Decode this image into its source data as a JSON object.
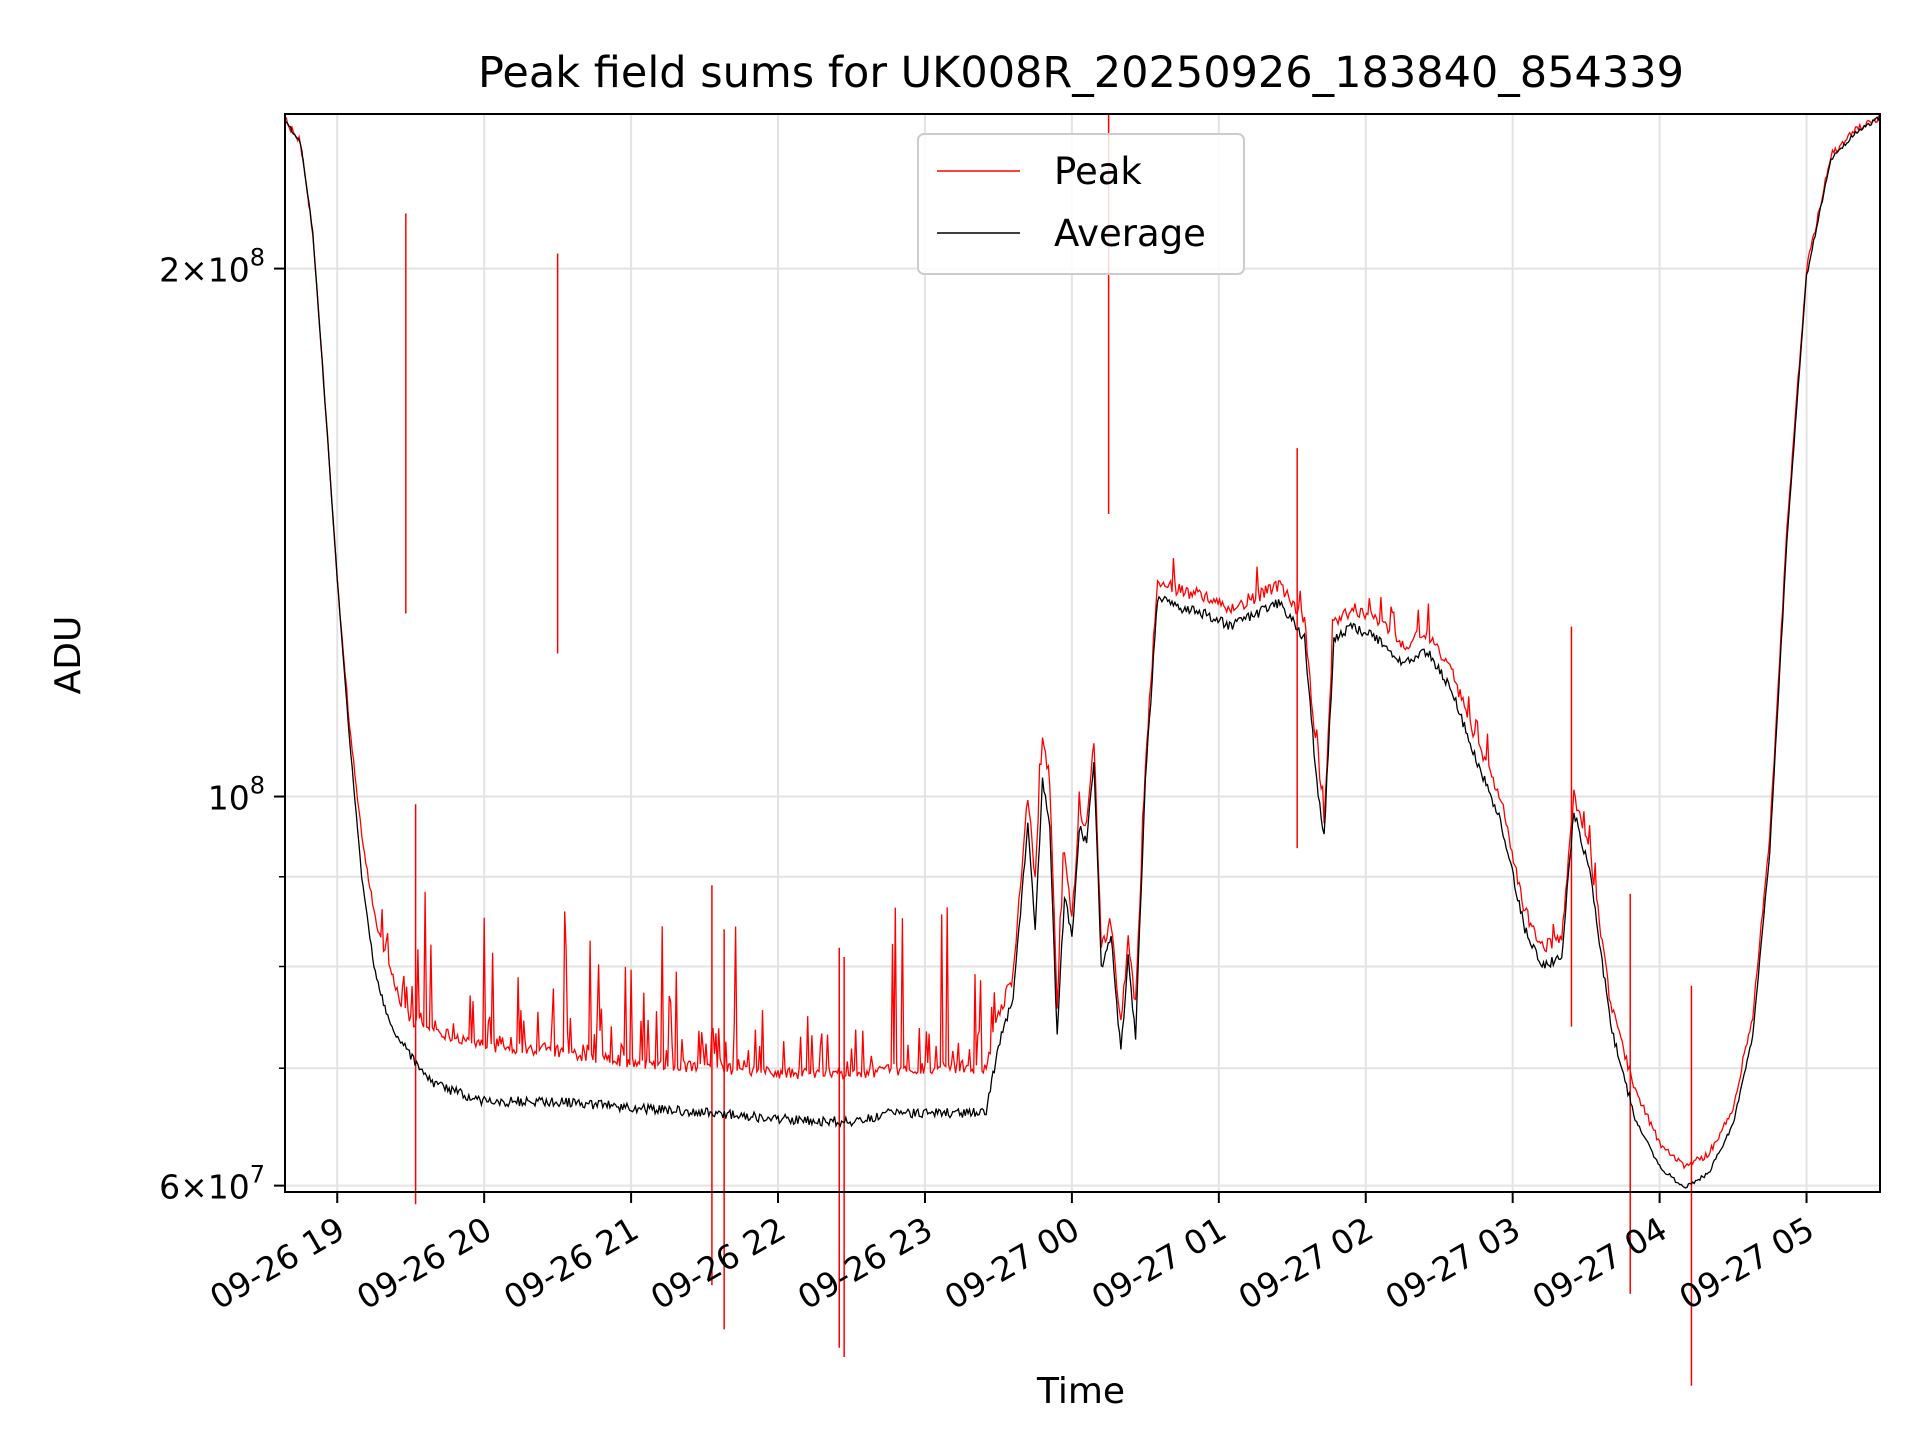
{
  "chart_data": {
    "type": "line",
    "title": "Peak field sums for UK008R_20250926_183840_854339",
    "xlabel": "Time",
    "ylabel": "ADU",
    "x_scale": "time",
    "y_scale": "log",
    "xlim": [
      "2025-09-26T18:38:40",
      "2025-09-27T05:30:00"
    ],
    "ylim": [
      59500000,
      245000000
    ],
    "grid": true,
    "legend_position": "top-center",
    "x_ticks": [
      {
        "t": "2025-09-26T19:00:00",
        "label": "09-26 19"
      },
      {
        "t": "2025-09-26T20:00:00",
        "label": "09-26 20"
      },
      {
        "t": "2025-09-26T21:00:00",
        "label": "09-26 21"
      },
      {
        "t": "2025-09-26T22:00:00",
        "label": "09-26 22"
      },
      {
        "t": "2025-09-26T23:00:00",
        "label": "09-26 23"
      },
      {
        "t": "2025-09-27T00:00:00",
        "label": "09-27 00"
      },
      {
        "t": "2025-09-27T01:00:00",
        "label": "09-27 01"
      },
      {
        "t": "2025-09-27T02:00:00",
        "label": "09-27 02"
      },
      {
        "t": "2025-09-27T03:00:00",
        "label": "09-27 03"
      },
      {
        "t": "2025-09-27T04:00:00",
        "label": "09-27 04"
      },
      {
        "t": "2025-09-27T05:00:00",
        "label": "09-27 05"
      }
    ],
    "y_ticks_major": [
      {
        "value": 60000000,
        "mant": "6",
        "base": "10",
        "exp": "7"
      },
      {
        "value": 100000000,
        "mant": "",
        "base": "10",
        "exp": "8"
      },
      {
        "value": 200000000,
        "mant": "2",
        "base": "10",
        "exp": "8"
      }
    ],
    "y_ticks_minor": [
      70000000,
      80000000,
      90000000
    ],
    "series": [
      {
        "name": "Peak",
        "color": "#ff0000",
        "points": [
          [
            "2025-09-26T18:38:40",
            243000000
          ],
          [
            "2025-09-26T18:45:00",
            236000000
          ],
          [
            "2025-09-26T18:50:00",
            210000000
          ],
          [
            "2025-09-26T18:55:00",
            168000000
          ],
          [
            "2025-09-26T19:00:00",
            133000000
          ],
          [
            "2025-09-26T19:05:00",
            110000000
          ],
          [
            "2025-09-26T19:10:00",
            95000000
          ],
          [
            "2025-09-26T19:15:00",
            86000000
          ],
          [
            "2025-09-26T19:20:00",
            80000000
          ],
          [
            "2025-09-26T19:25:00",
            76000000
          ],
          [
            "2025-09-26T19:30:00",
            74000000
          ],
          [
            "2025-09-26T19:40:00",
            73000000
          ],
          [
            "2025-09-26T20:00:00",
            71500000
          ],
          [
            "2025-09-26T20:30:00",
            71000000
          ],
          [
            "2025-09-26T21:00:00",
            70000000
          ],
          [
            "2025-09-26T21:30:00",
            69500000
          ],
          [
            "2025-09-26T22:00:00",
            69000000
          ],
          [
            "2025-09-26T22:30:00",
            69000000
          ],
          [
            "2025-09-26T23:00:00",
            69500000
          ],
          [
            "2025-09-26T23:25:00",
            69500000
          ],
          [
            "2025-09-26T23:30:00",
            75000000
          ],
          [
            "2025-09-26T23:36:00",
            79000000
          ],
          [
            "2025-09-26T23:42:00",
            100000000
          ],
          [
            "2025-09-26T23:45:00",
            90000000
          ],
          [
            "2025-09-26T23:48:00",
            108000000
          ],
          [
            "2025-09-26T23:51:00",
            102000000
          ],
          [
            "2025-09-26T23:54:00",
            76000000
          ],
          [
            "2025-09-26T23:57:00",
            93000000
          ],
          [
            "2025-09-27T00:00:00",
            85000000
          ],
          [
            "2025-09-27T00:03:00",
            98000000
          ],
          [
            "2025-09-27T00:06:00",
            96000000
          ],
          [
            "2025-09-27T00:09:00",
            108000000
          ],
          [
            "2025-09-27T00:12:00",
            82000000
          ],
          [
            "2025-09-27T00:16:00",
            85000000
          ],
          [
            "2025-09-27T00:20:00",
            74000000
          ],
          [
            "2025-09-27T00:23:00",
            83000000
          ],
          [
            "2025-09-27T00:26:00",
            76000000
          ],
          [
            "2025-09-27T00:30:00",
            104000000
          ],
          [
            "2025-09-27T00:35:00",
            133000000
          ],
          [
            "2025-09-27T00:45:00",
            131000000
          ],
          [
            "2025-09-27T00:55:00",
            130000000
          ],
          [
            "2025-09-27T01:05:00",
            128000000
          ],
          [
            "2025-09-27T01:15:00",
            130000000
          ],
          [
            "2025-09-27T01:25:00",
            132000000
          ],
          [
            "2025-09-27T01:35:00",
            126000000
          ],
          [
            "2025-09-27T01:40:00",
            105000000
          ],
          [
            "2025-09-27T01:43:00",
            97000000
          ],
          [
            "2025-09-27T01:47:00",
            126000000
          ],
          [
            "2025-09-27T01:55:00",
            128000000
          ],
          [
            "2025-09-27T02:05:00",
            126000000
          ],
          [
            "2025-09-27T02:15:00",
            122000000
          ],
          [
            "2025-09-27T02:25:00",
            124000000
          ],
          [
            "2025-09-27T02:35:00",
            118000000
          ],
          [
            "2025-09-27T02:45:00",
            108000000
          ],
          [
            "2025-09-27T02:55:00",
            100000000
          ],
          [
            "2025-09-27T03:05:00",
            86000000
          ],
          [
            "2025-09-27T03:12:00",
            82000000
          ],
          [
            "2025-09-27T03:20:00",
            83000000
          ],
          [
            "2025-09-27T03:25:00",
            100000000
          ],
          [
            "2025-09-27T03:32:00",
            92000000
          ],
          [
            "2025-09-27T03:40:00",
            76000000
          ],
          [
            "2025-09-27T03:50:00",
            68000000
          ],
          [
            "2025-09-27T04:00:00",
            63500000
          ],
          [
            "2025-09-27T04:10:00",
            61500000
          ],
          [
            "2025-09-27T04:20:00",
            62500000
          ],
          [
            "2025-09-27T04:30:00",
            66500000
          ],
          [
            "2025-09-27T04:38:00",
            75000000
          ],
          [
            "2025-09-27T04:45:00",
            95000000
          ],
          [
            "2025-09-27T04:52:00",
            142000000
          ],
          [
            "2025-09-27T05:00:00",
            200000000
          ],
          [
            "2025-09-27T05:10:00",
            232000000
          ],
          [
            "2025-09-27T05:20:00",
            240000000
          ],
          [
            "2025-09-27T05:30:00",
            244000000
          ]
        ],
        "spikes": [
          [
            "2025-09-26T19:28:00",
            215000000
          ],
          [
            "2025-09-26T19:32:00",
            99000000
          ],
          [
            "2025-09-26T20:30:00",
            204000000
          ],
          [
            "2025-09-26T21:33:00",
            89000000
          ],
          [
            "2025-09-26T21:38:00",
            84000000
          ],
          [
            "2025-09-26T22:25:00",
            82000000
          ],
          [
            "2025-09-26T22:27:00",
            81000000
          ],
          [
            "2025-09-27T00:15:00",
            245000000
          ],
          [
            "2025-09-27T01:32:00",
            158000000
          ],
          [
            "2025-09-27T03:24:00",
            125000000
          ],
          [
            "2025-09-27T04:13:00",
            78000000
          ],
          [
            "2025-09-27T03:48:00",
            88000000
          ]
        ]
      },
      {
        "name": "Average",
        "color": "#000000",
        "points": [
          [
            "2025-09-26T18:38:40",
            243000000
          ],
          [
            "2025-09-26T18:45:00",
            236000000
          ],
          [
            "2025-09-26T18:50:00",
            210000000
          ],
          [
            "2025-09-26T18:55:00",
            168000000
          ],
          [
            "2025-09-26T19:00:00",
            133000000
          ],
          [
            "2025-09-26T19:05:00",
            108000000
          ],
          [
            "2025-09-26T19:10:00",
            90000000
          ],
          [
            "2025-09-26T19:15:00",
            80000000
          ],
          [
            "2025-09-26T19:20:00",
            75000000
          ],
          [
            "2025-09-26T19:30:00",
            71000000
          ],
          [
            "2025-09-26T19:40:00",
            68500000
          ],
          [
            "2025-09-26T20:00:00",
            67000000
          ],
          [
            "2025-09-26T20:30:00",
            67000000
          ],
          [
            "2025-09-26T21:00:00",
            66500000
          ],
          [
            "2025-09-26T21:30:00",
            66000000
          ],
          [
            "2025-09-26T22:00:00",
            65500000
          ],
          [
            "2025-09-26T22:30:00",
            65200000
          ],
          [
            "2025-09-26T22:45:00",
            66000000
          ],
          [
            "2025-09-26T23:00:00",
            66000000
          ],
          [
            "2025-09-26T23:25:00",
            66000000
          ],
          [
            "2025-09-26T23:30:00",
            72000000
          ],
          [
            "2025-09-26T23:36:00",
            77000000
          ],
          [
            "2025-09-26T23:42:00",
            96000000
          ],
          [
            "2025-09-26T23:45:00",
            84000000
          ],
          [
            "2025-09-26T23:48:00",
            102000000
          ],
          [
            "2025-09-26T23:51:00",
            96000000
          ],
          [
            "2025-09-26T23:54:00",
            73000000
          ],
          [
            "2025-09-26T23:57:00",
            88000000
          ],
          [
            "2025-09-27T00:00:00",
            83000000
          ],
          [
            "2025-09-27T00:03:00",
            96000000
          ],
          [
            "2025-09-27T00:06:00",
            94000000
          ],
          [
            "2025-09-27T00:09:00",
            105000000
          ],
          [
            "2025-09-27T00:12:00",
            80000000
          ],
          [
            "2025-09-27T00:16:00",
            83000000
          ],
          [
            "2025-09-27T00:20:00",
            71500000
          ],
          [
            "2025-09-27T00:23:00",
            81000000
          ],
          [
            "2025-09-27T00:26:00",
            73000000
          ],
          [
            "2025-09-27T00:30:00",
            102000000
          ],
          [
            "2025-09-27T00:35:00",
            130000000
          ],
          [
            "2025-09-27T00:45:00",
            128000000
          ],
          [
            "2025-09-27T00:55:00",
            127000000
          ],
          [
            "2025-09-27T01:05:00",
            125000000
          ],
          [
            "2025-09-27T01:15:00",
            127000000
          ],
          [
            "2025-09-27T01:25:00",
            129000000
          ],
          [
            "2025-09-27T01:35:00",
            123000000
          ],
          [
            "2025-09-27T01:40:00",
            102000000
          ],
          [
            "2025-09-27T01:43:00",
            95000000
          ],
          [
            "2025-09-27T01:47:00",
            123000000
          ],
          [
            "2025-09-27T01:55:00",
            125000000
          ],
          [
            "2025-09-27T02:05:00",
            123000000
          ],
          [
            "2025-09-27T02:15:00",
            119000000
          ],
          [
            "2025-09-27T02:25:00",
            121000000
          ],
          [
            "2025-09-27T02:35:00",
            115000000
          ],
          [
            "2025-09-27T02:45:00",
            105000000
          ],
          [
            "2025-09-27T02:55:00",
            97000000
          ],
          [
            "2025-09-27T03:05:00",
            84000000
          ],
          [
            "2025-09-27T03:12:00",
            80000000
          ],
          [
            "2025-09-27T03:20:00",
            81000000
          ],
          [
            "2025-09-27T03:25:00",
            98000000
          ],
          [
            "2025-09-27T03:32:00",
            90000000
          ],
          [
            "2025-09-27T03:40:00",
            74000000
          ],
          [
            "2025-09-27T03:50:00",
            65500000
          ],
          [
            "2025-09-27T04:00:00",
            61500000
          ],
          [
            "2025-09-27T04:10:00",
            59800000
          ],
          [
            "2025-09-27T04:20:00",
            61000000
          ],
          [
            "2025-09-27T04:30:00",
            65000000
          ],
          [
            "2025-09-27T04:38:00",
            73000000
          ],
          [
            "2025-09-27T04:45:00",
            93000000
          ],
          [
            "2025-09-27T04:52:00",
            140000000
          ],
          [
            "2025-09-27T05:00:00",
            198000000
          ],
          [
            "2025-09-27T05:10:00",
            231000000
          ],
          [
            "2025-09-27T05:20:00",
            239000000
          ],
          [
            "2025-09-27T05:30:00",
            244000000
          ]
        ]
      }
    ]
  }
}
